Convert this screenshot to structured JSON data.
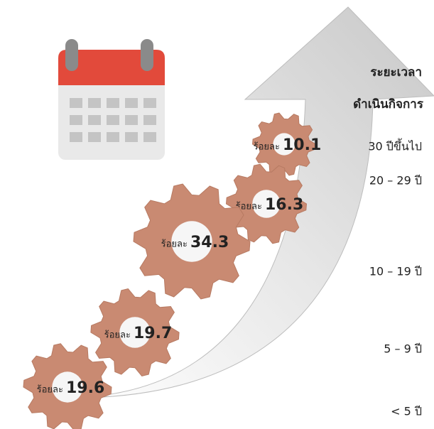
{
  "header": {
    "title_line1": "ระยะเวลา",
    "title_line2": "ดำเนินกิจการ"
  },
  "unit_label": "ร้อยละ",
  "items": [
    {
      "period": "30 ปีขึ้นไป",
      "value": 10.1
    },
    {
      "period": "20 – 29 ปี",
      "value": 16.3
    },
    {
      "period": "10 – 19 ปี",
      "value": 34.3
    },
    {
      "period": "5 – 9 ปี",
      "value": 19.7
    },
    {
      "period": "< 5 ปี",
      "value": 19.6
    }
  ]
}
